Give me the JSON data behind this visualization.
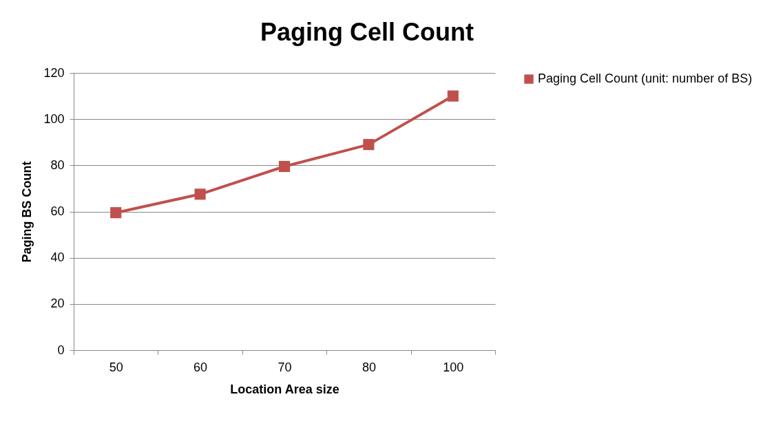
{
  "chart_data": {
    "type": "line",
    "title": "Paging Cell Count",
    "xlabel": "Location Area size",
    "ylabel": "Paging BS Count",
    "categories": [
      "50",
      "60",
      "70",
      "80",
      "100"
    ],
    "series": [
      {
        "name": "Paging Cell Count (unit: number of BS)",
        "color": "#c0504d",
        "values": [
          59.5,
          67.5,
          79.5,
          89,
          110
        ]
      }
    ],
    "ylim": [
      0,
      120
    ],
    "yticks": [
      0,
      20,
      40,
      60,
      80,
      100,
      120
    ],
    "grid": "y",
    "legend": "right",
    "marker": "square",
    "line_style": "solid"
  }
}
